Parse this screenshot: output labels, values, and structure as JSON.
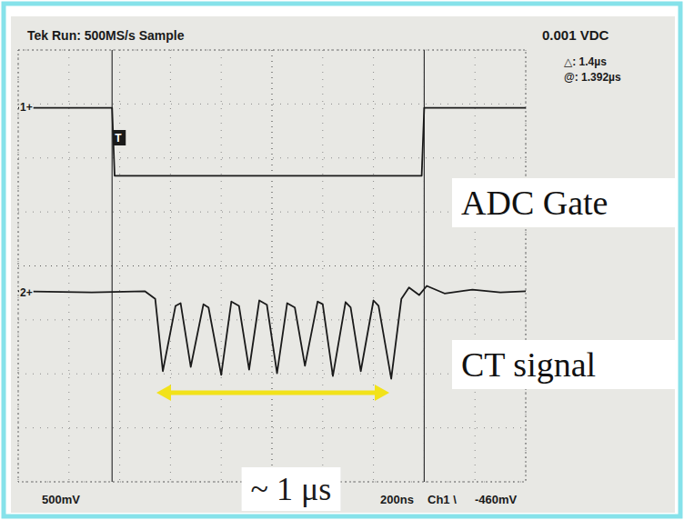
{
  "chart_data": {
    "type": "line",
    "xlim": [
      0,
      2000
    ],
    "xticks": [
      0,
      200,
      400,
      600,
      800,
      1000,
      1200,
      1400,
      1600,
      1800,
      2000
    ],
    "ylim": [
      -4,
      4
    ],
    "yticks": [
      -4,
      -3,
      -2,
      -1,
      0,
      1,
      2,
      3,
      4
    ],
    "grid": true,
    "tick_labels": false,
    "series": [
      {
        "name": "ADC Gate",
        "color": "#1a1a1a",
        "x": [
          0,
          370,
          380,
          1590,
          1600,
          2000
        ],
        "values": [
          2.93,
          2.93,
          1.67,
          1.67,
          2.93,
          2.93
        ]
      },
      {
        "name": "CT signal",
        "color": "#1a1a1a",
        "x": [
          0,
          290,
          500,
          540,
          570,
          620,
          640,
          680,
          730,
          750,
          800,
          840,
          870,
          910,
          950,
          980,
          1020,
          1060,
          1090,
          1130,
          1180,
          1200,
          1240,
          1290,
          1310,
          1350,
          1400,
          1420,
          1470,
          1510,
          1540,
          1580,
          1610,
          1680,
          1790,
          1900,
          2000
        ],
        "values": [
          -0.47,
          -0.49,
          -0.47,
          -0.61,
          -1.95,
          -0.74,
          -0.69,
          -1.87,
          -0.71,
          -0.77,
          -2.02,
          -0.66,
          -0.74,
          -1.92,
          -0.64,
          -0.72,
          -1.99,
          -0.69,
          -0.77,
          -1.85,
          -0.66,
          -0.71,
          -2.04,
          -0.67,
          -0.77,
          -1.95,
          -0.64,
          -0.74,
          -2.09,
          -0.61,
          -0.4,
          -0.54,
          -0.37,
          -0.51,
          -0.44,
          -0.49,
          -0.47
        ]
      }
    ],
    "annotations": [
      "Tek Run: 500MS/s Sample",
      "0.001 VDC",
      "△: 1.4µs",
      "@: 1.392µs",
      "1+",
      "2+",
      "T",
      "500mV",
      "200ns",
      "Ch1 \\",
      "-460mV",
      "~ 1 μs"
    ]
  }
}
